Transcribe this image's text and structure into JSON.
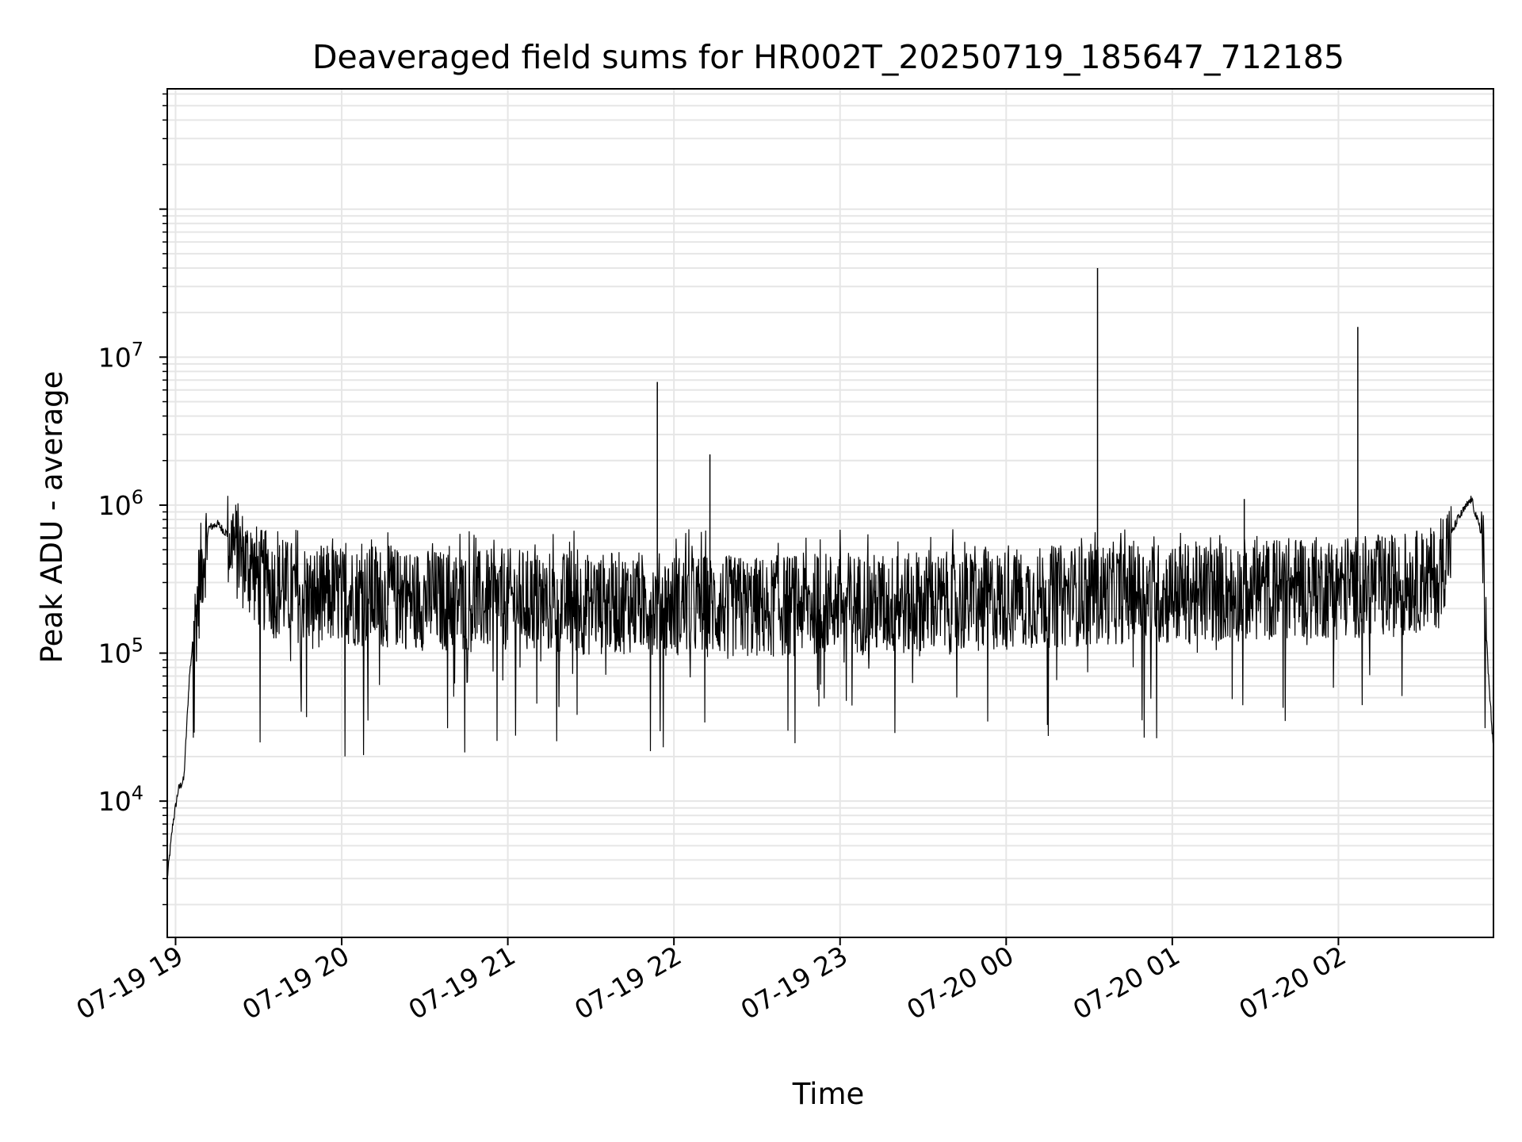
{
  "chart_data": {
    "type": "line",
    "title": "Deaveraged field sums for HR002T_20250719_185647_712185",
    "xlabel": "Time",
    "ylabel": "Peak ADU - average",
    "yscale": "log",
    "xlim": [
      "2025-07-19 18:57",
      "2025-07-20 02:56"
    ],
    "ylim": [
      1200,
      650000000
    ],
    "grid": true,
    "x_tick_labels": [
      "07-19 19",
      "07-19 20",
      "07-19 21",
      "07-19 22",
      "07-19 23",
      "07-20 00",
      "07-20 01",
      "07-20 02"
    ],
    "x_ticks": [
      "2025-07-19 19:00",
      "2025-07-19 20:00",
      "2025-07-19 21:00",
      "2025-07-19 22:00",
      "2025-07-19 23:00",
      "2025-07-20 00:00",
      "2025-07-20 01:00",
      "2025-07-20 02:00"
    ],
    "y_ticks": [
      {
        "value": 10000,
        "base": "10",
        "exp": "4"
      },
      {
        "value": 100000,
        "base": "10",
        "exp": "5"
      },
      {
        "value": 1000000,
        "base": "10",
        "exp": "6"
      },
      {
        "value": 10000000,
        "base": "10",
        "exp": "7"
      }
    ],
    "line_color": "#000000",
    "series": [
      {
        "x": [
          "2025-07-19 18:57",
          "2025-07-19 18:59",
          "2025-07-19 19:01",
          "2025-07-19 19:03",
          "2025-07-19 19:05",
          "2025-07-19 19:08",
          "2025-07-19 19:10",
          "2025-07-19 19:12",
          "2025-07-19 19:15",
          "2025-07-19 19:20",
          "2025-07-19 19:25",
          "2025-07-19 19:30",
          "2025-07-19 19:35",
          "2025-07-19 19:40",
          "2025-07-19 19:45",
          "2025-07-19 19:50",
          "2025-07-19 20:00",
          "2025-07-19 20:15",
          "2025-07-19 20:30",
          "2025-07-19 20:45",
          "2025-07-19 21:00",
          "2025-07-19 21:15",
          "2025-07-19 21:30",
          "2025-07-19 21:45",
          "2025-07-19 21:54",
          "2025-07-19 22:00",
          "2025-07-19 22:13",
          "2025-07-19 22:30",
          "2025-07-19 22:45",
          "2025-07-19 23:00",
          "2025-07-19 23:15",
          "2025-07-19 23:30",
          "2025-07-19 23:45",
          "2025-07-20 00:00",
          "2025-07-20 00:15",
          "2025-07-20 00:33",
          "2025-07-20 00:45",
          "2025-07-20 01:00",
          "2025-07-20 01:15",
          "2025-07-20 01:26",
          "2025-07-20 01:45",
          "2025-07-20 02:00",
          "2025-07-20 02:07",
          "2025-07-20 02:20",
          "2025-07-20 02:35",
          "2025-07-20 02:43",
          "2025-07-20 02:48",
          "2025-07-20 02:52",
          "2025-07-20 02:54",
          "2025-07-20 02:56"
        ],
        "y": [
          3000,
          7000,
          12000,
          14000,
          70000,
          250000,
          500000,
          700000,
          750000,
          600000,
          450000,
          350000,
          300000,
          290000,
          280000,
          260000,
          270000,
          260000,
          250000,
          240000,
          250000,
          240000,
          230000,
          240000,
          6800000,
          230000,
          2200000,
          220000,
          230000,
          240000,
          230000,
          230000,
          240000,
          250000,
          260000,
          40000000,
          280000,
          270000,
          280000,
          1100000,
          300000,
          300000,
          16000000,
          310000,
          350000,
          800000,
          1100000,
          600000,
          80000,
          22000
        ],
        "envelope_upper": 550000,
        "envelope_lower": 20000
      }
    ]
  }
}
